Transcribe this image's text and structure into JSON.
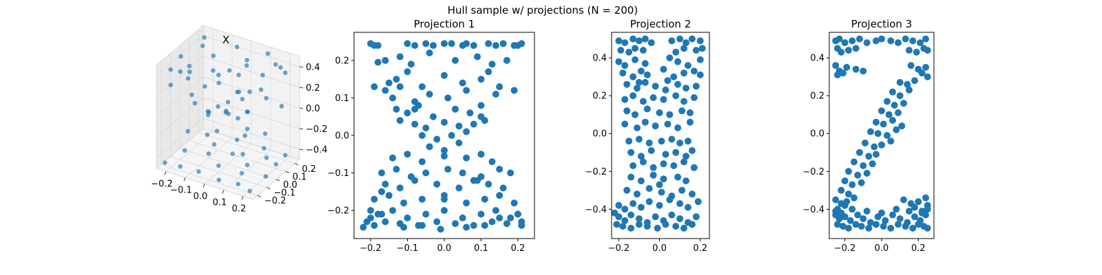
{
  "figure": {
    "suptitle": "Hull sample w/ projections (N = 200)"
  },
  "chart_data": [
    {
      "type": "scatter3d",
      "title": "X",
      "x_ticks": [
        "−0.2",
        "−0.1",
        "0.0",
        "0.1",
        "0.2"
      ],
      "y_ticks": [
        "−0.2",
        "−0.1",
        "0.0",
        "0.1",
        "0.2"
      ],
      "z_ticks": [
        "−0.4",
        "−0.2",
        "0.0",
        "0.2",
        "0.4"
      ],
      "xlim": [
        -0.25,
        0.25
      ],
      "ylim": [
        -0.25,
        0.25
      ],
      "zlim": [
        -0.5,
        0.5
      ],
      "color": "#1f77b4",
      "points": [
        [
          -0.2,
          -0.2,
          0.45
        ],
        [
          -0.15,
          -0.2,
          0.46
        ],
        [
          -0.1,
          -0.22,
          0.44
        ],
        [
          0.05,
          -0.2,
          0.47
        ],
        [
          0.15,
          -0.21,
          0.45
        ],
        [
          0.2,
          -0.18,
          0.46
        ],
        [
          -0.22,
          -0.05,
          0.45
        ],
        [
          0.0,
          -0.1,
          0.44
        ],
        [
          -0.18,
          0.1,
          0.46
        ],
        [
          -0.05,
          0.2,
          0.45
        ],
        [
          0.1,
          0.22,
          0.46
        ],
        [
          0.2,
          0.15,
          0.44
        ],
        [
          0.18,
          0.0,
          0.47
        ],
        [
          -0.1,
          0.05,
          0.45
        ],
        [
          0.05,
          0.1,
          0.46
        ],
        [
          0.22,
          -0.1,
          0.43
        ],
        [
          -0.22,
          0.2,
          0.44
        ],
        [
          0.08,
          -0.05,
          0.45
        ],
        [
          -0.2,
          -0.2,
          0.3
        ],
        [
          -0.1,
          -0.18,
          0.25
        ],
        [
          0.1,
          -0.2,
          0.2
        ],
        [
          0.2,
          -0.2,
          0.28
        ],
        [
          0.15,
          0.1,
          0.15
        ],
        [
          -0.15,
          0.15,
          0.2
        ],
        [
          0.0,
          0.0,
          0.1
        ],
        [
          -0.05,
          -0.1,
          0.05
        ],
        [
          0.05,
          0.05,
          0.12
        ],
        [
          0.1,
          -0.1,
          0.08
        ],
        [
          -0.12,
          0.0,
          0.18
        ],
        [
          0.2,
          0.2,
          0.35
        ],
        [
          -0.2,
          0.0,
          0.33
        ],
        [
          0.0,
          0.2,
          0.3
        ],
        [
          -0.08,
          -0.05,
          0.0
        ],
        [
          0.06,
          0.08,
          -0.02
        ],
        [
          0.0,
          -0.02,
          0.03
        ],
        [
          -0.03,
          0.04,
          -0.05
        ],
        [
          0.1,
          0.0,
          -0.1
        ],
        [
          -0.1,
          0.1,
          -0.08
        ],
        [
          0.15,
          -0.15,
          -0.2
        ],
        [
          -0.15,
          -0.12,
          -0.18
        ],
        [
          0.12,
          0.15,
          -0.25
        ],
        [
          -0.2,
          0.2,
          -0.3
        ],
        [
          0.2,
          0.0,
          -0.32
        ],
        [
          -0.22,
          -0.22,
          -0.45
        ],
        [
          -0.15,
          -0.2,
          -0.46
        ],
        [
          -0.05,
          -0.21,
          -0.44
        ],
        [
          0.05,
          -0.2,
          -0.47
        ],
        [
          0.15,
          -0.2,
          -0.45
        ],
        [
          0.22,
          -0.22,
          -0.46
        ],
        [
          -0.2,
          -0.05,
          -0.45
        ],
        [
          -0.1,
          0.0,
          -0.46
        ],
        [
          0.0,
          0.05,
          -0.44
        ],
        [
          0.1,
          0.0,
          -0.45
        ],
        [
          0.2,
          0.1,
          -0.46
        ],
        [
          -0.18,
          0.15,
          -0.44
        ],
        [
          -0.05,
          0.2,
          -0.45
        ],
        [
          0.08,
          0.22,
          -0.47
        ],
        [
          0.2,
          0.2,
          -0.45
        ],
        [
          0.0,
          -0.1,
          -0.44
        ],
        [
          -0.12,
          0.1,
          -0.46
        ],
        [
          0.12,
          -0.1,
          -0.44
        ],
        [
          0.22,
          -0.05,
          -0.45
        ],
        [
          -0.22,
          0.1,
          -0.12
        ],
        [
          0.22,
          0.12,
          0.1
        ],
        [
          -0.05,
          0.22,
          0.0
        ],
        [
          0.05,
          -0.22,
          0.02
        ],
        [
          0.15,
          0.2,
          0.4
        ],
        [
          -0.15,
          -0.1,
          0.38
        ],
        [
          0.03,
          0.12,
          -0.3
        ],
        [
          -0.08,
          0.18,
          0.22
        ]
      ]
    },
    {
      "type": "scatter",
      "title": "Projection 1",
      "x_ticks": [
        "−0.2",
        "−0.1",
        "0.0",
        "0.1",
        "0.2"
      ],
      "y_ticks": [
        "−0.2",
        "−0.1",
        "0.0",
        "0.1",
        "0.2"
      ],
      "x_tick_values": [
        -0.2,
        -0.1,
        0.0,
        0.1,
        0.2
      ],
      "y_tick_values": [
        -0.2,
        -0.1,
        0.0,
        0.1,
        0.2
      ],
      "xlim": [
        -0.245,
        0.245
      ],
      "ylim": [
        -0.275,
        0.275
      ],
      "color": "#1f77b4",
      "x": [
        -0.2,
        -0.19,
        -0.18,
        -0.1,
        -0.08,
        -0.05,
        -0.03,
        0.0,
        0.02,
        0.05,
        0.06,
        0.08,
        0.12,
        0.14,
        0.16,
        0.19,
        0.2,
        0.21,
        -0.18,
        -0.16,
        -0.12,
        -0.09,
        -0.04,
        0.03,
        0.09,
        0.13,
        0.17,
        -0.15,
        -0.13,
        -0.1,
        -0.06,
        0.0,
        0.05,
        0.1,
        0.15,
        -0.16,
        -0.14,
        -0.12,
        -0.08,
        -0.04,
        0.01,
        0.06,
        0.1,
        0.14,
        -0.13,
        -0.1,
        -0.07,
        -0.03,
        0.03,
        0.07,
        0.1,
        -0.12,
        -0.08,
        -0.05,
        0.0,
        0.04,
        0.08,
        0.11,
        -0.06,
        -0.02,
        0.02,
        0.06,
        -0.04,
        0.0,
        0.04,
        -0.14,
        -0.1,
        -0.06,
        0.0,
        0.06,
        0.1,
        0.13,
        -0.17,
        -0.13,
        -0.09,
        -0.05,
        0.01,
        0.05,
        0.1,
        0.15,
        0.18,
        -0.16,
        -0.12,
        -0.08,
        -0.02,
        0.04,
        0.08,
        0.12,
        0.16,
        -0.19,
        -0.15,
        -0.11,
        -0.06,
        0.0,
        0.06,
        0.11,
        0.15,
        0.19,
        -0.2,
        -0.18,
        -0.14,
        -0.1,
        -0.05,
        0.0,
        0.05,
        0.1,
        0.14,
        0.18,
        0.2,
        -0.21,
        -0.19,
        -0.16,
        -0.12,
        -0.07,
        -0.02,
        0.03,
        0.08,
        0.13,
        0.17,
        0.21,
        -0.22,
        -0.2,
        -0.17,
        -0.11,
        -0.06,
        -0.01,
        0.06,
        0.11,
        0.15,
        0.2,
        0.21,
        -0.19,
        0.19,
        -0.17,
        0.12,
        0.0,
        -0.08,
        0.09
      ],
      "y": [
        0.245,
        0.24,
        0.24,
        0.245,
        0.24,
        0.245,
        0.24,
        0.245,
        0.245,
        0.24,
        0.245,
        0.24,
        0.245,
        0.24,
        0.245,
        0.24,
        0.24,
        0.245,
        0.195,
        0.2,
        0.21,
        0.19,
        0.22,
        0.2,
        0.21,
        0.19,
        0.2,
        0.14,
        0.15,
        0.17,
        0.13,
        0.16,
        0.14,
        0.15,
        0.13,
        0.12,
        0.1,
        0.13,
        0.09,
        0.11,
        0.1,
        0.12,
        0.08,
        0.11,
        0.07,
        0.06,
        0.08,
        0.05,
        0.07,
        0.06,
        0.05,
        0.04,
        0.03,
        0.02,
        0.035,
        0.025,
        0.03,
        0.04,
        0.0,
        -0.01,
        0.0,
        0.01,
        -0.03,
        -0.04,
        -0.02,
        -0.06,
        -0.05,
        -0.07,
        -0.055,
        -0.06,
        -0.05,
        -0.07,
        -0.1,
        -0.09,
        -0.11,
        -0.1,
        -0.09,
        -0.1,
        -0.11,
        -0.09,
        -0.1,
        -0.13,
        -0.14,
        -0.12,
        -0.13,
        -0.14,
        -0.12,
        -0.13,
        -0.14,
        -0.17,
        -0.16,
        -0.18,
        -0.17,
        -0.16,
        -0.18,
        -0.17,
        -0.16,
        -0.18,
        -0.2,
        -0.21,
        -0.2,
        -0.22,
        -0.21,
        -0.2,
        -0.22,
        -0.21,
        -0.2,
        -0.22,
        -0.21,
        -0.23,
        -0.24,
        -0.23,
        -0.235,
        -0.24,
        -0.23,
        -0.235,
        -0.24,
        -0.23,
        -0.235,
        -0.24,
        -0.245,
        -0.22,
        -0.21,
        -0.245,
        -0.24,
        -0.25,
        -0.245,
        -0.24,
        -0.22,
        -0.21,
        -0.23,
        0.13,
        0.12,
        -0.15,
        0.17,
        -0.17,
        0.07,
        -0.12
      ]
    },
    {
      "type": "scatter",
      "title": "Projection 2",
      "x_ticks": [
        "−0.2",
        "0.0",
        "0.2"
      ],
      "y_ticks": [
        "−0.4",
        "−0.2",
        "0.0",
        "0.2",
        "0.4"
      ],
      "x_tick_values": [
        -0.2,
        0.0,
        0.2
      ],
      "y_tick_values": [
        -0.4,
        -0.2,
        0.0,
        0.2,
        0.4
      ],
      "xlim": [
        -0.235,
        0.245
      ],
      "ylim": [
        -0.555,
        0.535
      ],
      "color": "#1f77b4",
      "x": [
        -0.2,
        -0.17,
        -0.13,
        -0.1,
        -0.07,
        -0.04,
        0.06,
        0.1,
        0.13,
        0.16,
        0.2,
        -0.19,
        -0.15,
        -0.12,
        -0.08,
        0.08,
        0.12,
        0.18,
        0.21,
        -0.2,
        -0.17,
        -0.12,
        -0.07,
        0.05,
        0.09,
        0.14,
        0.2,
        -0.18,
        -0.13,
        -0.09,
        -0.06,
        0.02,
        0.07,
        0.12,
        0.17,
        0.2,
        -0.16,
        -0.11,
        -0.07,
        -0.02,
        0.03,
        0.09,
        0.13,
        0.18,
        -0.17,
        -0.13,
        -0.08,
        -0.03,
        0.02,
        0.08,
        0.12,
        0.17,
        -0.16,
        -0.12,
        -0.06,
        0.0,
        0.05,
        0.11,
        0.15,
        -0.17,
        -0.11,
        -0.07,
        -0.02,
        0.04,
        0.09,
        0.15,
        -0.15,
        -0.1,
        -0.05,
        0.01,
        0.06,
        0.1,
        0.14,
        -0.14,
        -0.09,
        -0.04,
        0.03,
        0.08,
        0.13,
        0.16,
        -0.13,
        -0.08,
        -0.03,
        0.02,
        0.07,
        0.12,
        0.17,
        -0.14,
        -0.09,
        -0.03,
        0.02,
        0.09,
        0.13,
        -0.16,
        -0.11,
        -0.05,
        0.01,
        0.06,
        0.11,
        0.16,
        -0.2,
        -0.17,
        -0.13,
        -0.09,
        -0.05,
        0.0,
        0.05,
        0.1,
        0.14,
        0.19,
        -0.22,
        -0.2,
        -0.17,
        -0.14,
        -0.1,
        -0.06,
        -0.02,
        0.02,
        0.06,
        0.1,
        0.14,
        0.18,
        -0.21,
        -0.18,
        -0.14,
        -0.1,
        -0.06,
        -0.01,
        0.03,
        0.08,
        0.12,
        0.16,
        -0.1,
        0.04,
        0.0
      ],
      "y": [
        0.49,
        0.48,
        0.5,
        0.49,
        0.5,
        0.48,
        0.49,
        0.5,
        0.48,
        0.5,
        0.49,
        0.44,
        0.43,
        0.45,
        0.44,
        0.43,
        0.45,
        0.44,
        0.45,
        0.38,
        0.36,
        0.39,
        0.37,
        0.4,
        0.38,
        0.36,
        0.39,
        0.32,
        0.3,
        0.33,
        0.31,
        0.34,
        0.3,
        0.32,
        0.33,
        0.31,
        0.26,
        0.24,
        0.27,
        0.25,
        0.23,
        0.26,
        0.24,
        0.25,
        0.18,
        0.2,
        0.17,
        0.19,
        0.18,
        0.2,
        0.17,
        0.19,
        0.12,
        0.1,
        0.13,
        0.11,
        0.1,
        0.12,
        0.11,
        0.05,
        0.03,
        0.06,
        0.04,
        0.05,
        0.03,
        0.06,
        -0.04,
        -0.03,
        -0.05,
        -0.04,
        -0.03,
        -0.05,
        -0.04,
        -0.1,
        -0.12,
        -0.09,
        -0.11,
        -0.1,
        -0.12,
        -0.09,
        -0.17,
        -0.15,
        -0.18,
        -0.16,
        -0.17,
        -0.15,
        -0.18,
        -0.23,
        -0.25,
        -0.22,
        -0.24,
        -0.23,
        -0.25,
        -0.3,
        -0.32,
        -0.29,
        -0.31,
        -0.33,
        -0.3,
        -0.32,
        -0.38,
        -0.4,
        -0.37,
        -0.39,
        -0.36,
        -0.38,
        -0.35,
        -0.37,
        -0.39,
        -0.36,
        -0.42,
        -0.44,
        -0.46,
        -0.43,
        -0.45,
        -0.47,
        -0.44,
        -0.46,
        -0.43,
        -0.45,
        -0.47,
        -0.44,
        -0.48,
        -0.49,
        -0.5,
        -0.48,
        -0.49,
        -0.5,
        -0.48,
        -0.49,
        -0.5,
        -0.48,
        0.27,
        0.28,
        -0.27
      ]
    },
    {
      "type": "scatter",
      "title": "Projection 3",
      "x_ticks": [
        "−0.2",
        "0.0",
        "0.2"
      ],
      "y_ticks": [
        "−0.4",
        "−0.2",
        "0.0",
        "0.2",
        "0.4"
      ],
      "x_tick_values": [
        -0.2,
        0.0,
        0.2
      ],
      "y_tick_values": [
        -0.4,
        -0.2,
        0.0,
        0.2,
        0.4
      ],
      "xlim": [
        -0.285,
        0.285
      ],
      "ylim": [
        -0.555,
        0.535
      ],
      "color": "#1f77b4",
      "x": [
        -0.25,
        -0.23,
        -0.2,
        -0.16,
        -0.12,
        -0.08,
        -0.03,
        0.0,
        0.05,
        0.09,
        0.13,
        0.17,
        0.21,
        0.24,
        -0.24,
        -0.22,
        -0.18,
        -0.14,
        0.15,
        0.19,
        0.23,
        0.25,
        -0.25,
        -0.23,
        -0.19,
        -0.14,
        -0.1,
        0.16,
        0.2,
        0.24,
        -0.24,
        -0.21,
        0.22,
        0.25,
        0.1,
        0.14,
        0.18,
        0.06,
        0.1,
        0.15,
        0.03,
        0.07,
        0.12,
        0.0,
        0.04,
        0.09,
        -0.03,
        0.01,
        0.06,
        0.11,
        -0.06,
        -0.02,
        0.03,
        0.08,
        -0.09,
        -0.04,
        0.0,
        0.05,
        -0.12,
        -0.07,
        -0.03,
        -0.15,
        -0.1,
        -0.05,
        -0.18,
        -0.13,
        -0.08,
        -0.2,
        -0.16,
        -0.11,
        -0.22,
        -0.18,
        -0.25,
        -0.22,
        -0.19,
        -0.15,
        0.12,
        0.16,
        0.2,
        0.24,
        -0.24,
        -0.2,
        0.18,
        0.22,
        0.25,
        -0.25,
        -0.23,
        -0.2,
        -0.17,
        -0.13,
        -0.1,
        -0.06,
        -0.02,
        0.02,
        0.06,
        0.1,
        0.14,
        0.18,
        0.21,
        0.24,
        -0.24,
        -0.21,
        -0.18,
        -0.14,
        -0.11,
        -0.07,
        -0.03,
        0.01,
        0.05,
        0.09,
        0.13,
        0.17,
        0.2,
        0.23,
        0.25,
        -0.25,
        -0.22,
        -0.16,
        -0.08,
        0.0,
        0.08,
        0.15,
        0.22,
        0.25
      ],
      "y": [
        0.49,
        0.5,
        0.48,
        0.49,
        0.5,
        0.48,
        0.49,
        0.5,
        0.49,
        0.48,
        0.5,
        0.49,
        0.48,
        0.5,
        0.45,
        0.43,
        0.44,
        0.45,
        0.44,
        0.43,
        0.45,
        0.44,
        0.36,
        0.33,
        0.35,
        0.34,
        0.33,
        0.36,
        0.34,
        0.35,
        0.31,
        0.32,
        0.32,
        0.3,
        0.27,
        0.26,
        0.28,
        0.22,
        0.2,
        0.23,
        0.17,
        0.15,
        0.16,
        0.12,
        0.1,
        0.11,
        0.06,
        0.05,
        0.07,
        0.04,
        0.01,
        0.0,
        -0.01,
        0.02,
        -0.05,
        -0.07,
        -0.06,
        -0.04,
        -0.1,
        -0.12,
        -0.11,
        -0.15,
        -0.17,
        -0.16,
        -0.2,
        -0.22,
        -0.21,
        -0.25,
        -0.27,
        -0.26,
        -0.3,
        -0.32,
        -0.35,
        -0.37,
        -0.36,
        -0.34,
        -0.35,
        -0.37,
        -0.36,
        -0.34,
        -0.4,
        -0.38,
        -0.39,
        -0.41,
        -0.38,
        -0.43,
        -0.45,
        -0.44,
        -0.46,
        -0.43,
        -0.45,
        -0.47,
        -0.44,
        -0.46,
        -0.43,
        -0.45,
        -0.47,
        -0.44,
        -0.46,
        -0.43,
        -0.48,
        -0.49,
        -0.5,
        -0.48,
        -0.49,
        -0.5,
        -0.48,
        -0.49,
        -0.5,
        -0.48,
        -0.49,
        -0.5,
        -0.48,
        -0.49,
        -0.5,
        -0.41,
        -0.42,
        -0.4,
        -0.41,
        -0.42,
        -0.4,
        -0.41,
        -0.42,
        -0.4
      ]
    }
  ]
}
